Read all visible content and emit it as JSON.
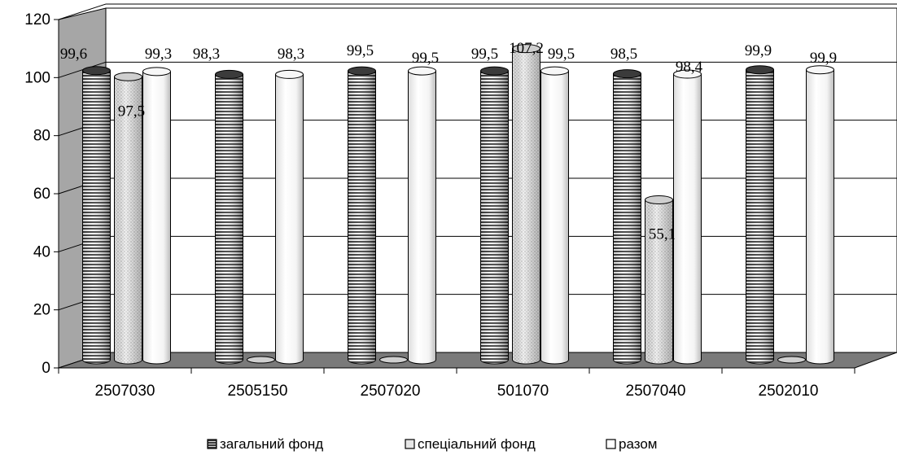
{
  "chart_data": {
    "type": "bar",
    "style": "3d-cylinder",
    "categories": [
      "2507030",
      "2505150",
      "2507020",
      "501070",
      "2507040",
      "2502010"
    ],
    "series": [
      {
        "name": "загальний фонд",
        "values": [
          99.6,
          98.3,
          99.5,
          99.5,
          98.5,
          99.9
        ],
        "labels": [
          "99,6",
          "98,3",
          "99,5",
          "99,5",
          "98,5",
          "99,9"
        ],
        "color": "#2b2b2b",
        "pattern": "horizontal-stripes"
      },
      {
        "name": "спеціальний фонд",
        "values": [
          97.5,
          0,
          0,
          107.2,
          55.1,
          0
        ],
        "labels": [
          "97,5",
          "",
          "",
          "107,2",
          "55,1",
          ""
        ],
        "color": "#e2e2e2",
        "pattern": "dots"
      },
      {
        "name": "разом",
        "values": [
          99.3,
          98.3,
          99.5,
          99.5,
          98.4,
          99.9
        ],
        "labels": [
          "99,3",
          "98,3",
          "99,5",
          "99,5",
          "98,4",
          "99,9"
        ],
        "color": "#ffffff",
        "pattern": "none"
      }
    ],
    "ylim": [
      0,
      120
    ],
    "yticks": [
      "0",
      "20",
      "40",
      "60",
      "80",
      "100",
      "120"
    ],
    "grid": true,
    "legend_position": "bottom",
    "title": "",
    "xlabel": "",
    "ylabel": ""
  }
}
